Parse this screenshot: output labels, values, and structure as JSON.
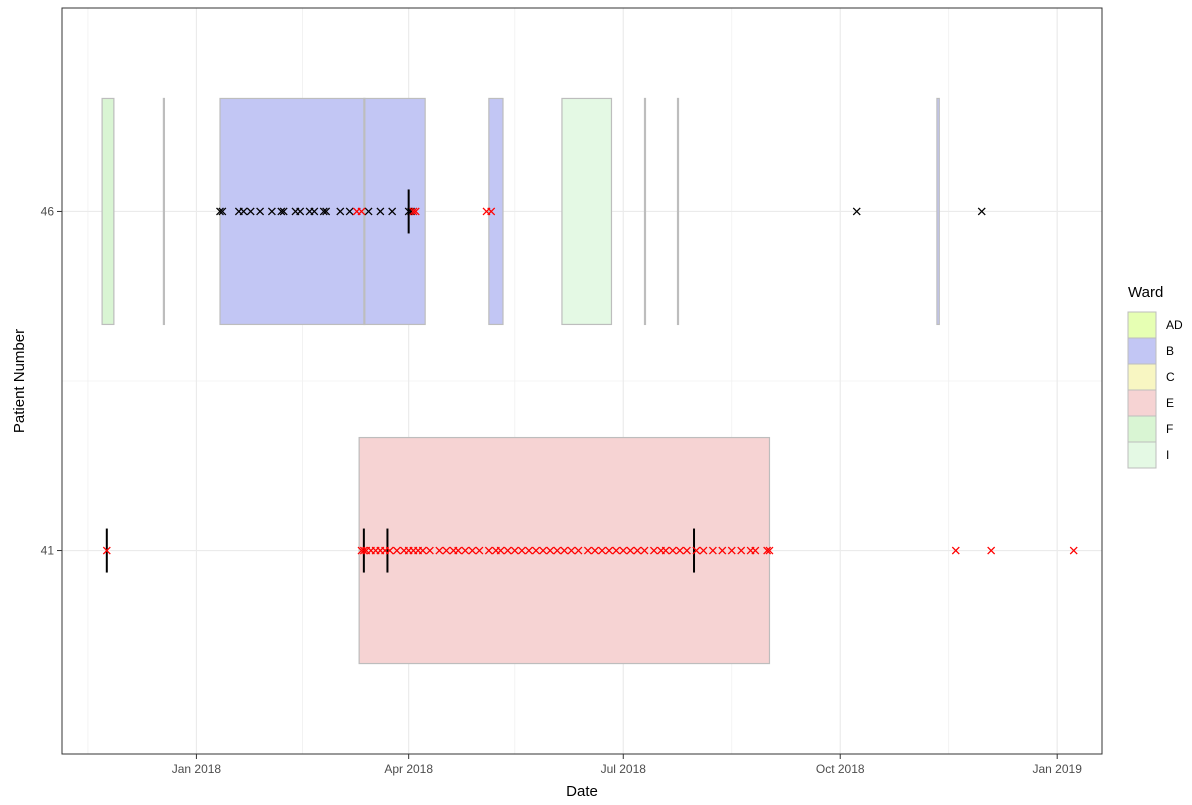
{
  "chart_data": {
    "type": "scatter",
    "xlabel": "Date",
    "ylabel": "Patient Number",
    "xlim": [
      "2017-11-05",
      "2019-01-20"
    ],
    "x_ticks": [
      {
        "date": "2018-01-01",
        "label": "Jan 2018"
      },
      {
        "date": "2018-04-01",
        "label": "Apr 2018"
      },
      {
        "date": "2018-07-01",
        "label": "Jul 2018"
      },
      {
        "date": "2018-10-01",
        "label": "Oct 2018"
      },
      {
        "date": "2019-01-01",
        "label": "Jan 2019"
      }
    ],
    "x_minor_ticks": [
      "2017-11-16",
      "2018-02-15",
      "2018-05-16",
      "2018-08-16",
      "2018-11-16"
    ],
    "categories": [
      "41",
      "46"
    ],
    "grid": true,
    "legend": {
      "title": "Ward",
      "placement": "right",
      "entries": [
        {
          "label": "AD",
          "fill": "#e6ffb3"
        },
        {
          "label": "B",
          "fill": "#c2c6f4"
        },
        {
          "label": "C",
          "fill": "#f8f6c2"
        },
        {
          "label": "E",
          "fill": "#f6d3d3"
        },
        {
          "label": "F",
          "fill": "#d9f5d3"
        },
        {
          "label": "I",
          "fill": "#e4f9e4"
        }
      ]
    },
    "ward_stays": [
      {
        "patient": "46",
        "ward": "F",
        "start": "2017-11-22",
        "end": "2017-11-27"
      },
      {
        "patient": "46",
        "ward": "F",
        "start": "2017-12-18",
        "end": "2017-12-18"
      },
      {
        "patient": "46",
        "ward": "B",
        "start": "2018-01-11",
        "end": "2018-04-08"
      },
      {
        "patient": "46",
        "ward": "B",
        "start": "2018-03-13",
        "end": "2018-03-13"
      },
      {
        "patient": "46",
        "ward": "B",
        "start": "2018-05-05",
        "end": "2018-05-11"
      },
      {
        "patient": "46",
        "ward": "I",
        "start": "2018-06-05",
        "end": "2018-06-26"
      },
      {
        "patient": "46",
        "ward": "F",
        "start": "2018-07-10",
        "end": "2018-07-10"
      },
      {
        "patient": "46",
        "ward": "F",
        "start": "2018-07-24",
        "end": "2018-07-24"
      },
      {
        "patient": "46",
        "ward": "B",
        "start": "2018-11-11",
        "end": "2018-11-12"
      },
      {
        "patient": "41",
        "ward": "E",
        "start": "2018-03-11",
        "end": "2018-09-01"
      }
    ],
    "series": [
      {
        "marker_color": "#000000",
        "patient": "46",
        "dates": [
          "2018-01-11",
          "2018-01-12",
          "2018-01-19",
          "2018-01-21",
          "2018-01-24",
          "2018-01-28",
          "2018-02-02",
          "2018-02-06",
          "2018-02-07",
          "2018-02-12",
          "2018-02-14",
          "2018-02-18",
          "2018-02-20",
          "2018-02-24",
          "2018-02-25",
          "2018-03-03",
          "2018-03-07",
          "2018-03-15",
          "2018-03-20",
          "2018-03-25",
          "2018-04-01",
          "2018-04-02",
          "2018-10-08",
          "2018-11-30"
        ]
      },
      {
        "marker_color": "#ff0000",
        "patient": "46",
        "dates": [
          "2018-03-10",
          "2018-03-12",
          "2018-04-03",
          "2018-04-04",
          "2018-05-04",
          "2018-05-06"
        ]
      },
      {
        "marker_color": "#ff0000",
        "patient": "41",
        "dates": [
          "2017-11-24",
          "2018-03-12",
          "2018-03-13",
          "2018-03-14",
          "2018-03-16",
          "2018-03-18",
          "2018-03-20",
          "2018-03-22",
          "2018-03-24",
          "2018-03-27",
          "2018-03-30",
          "2018-04-01",
          "2018-04-03",
          "2018-04-05",
          "2018-04-07",
          "2018-04-10",
          "2018-04-14",
          "2018-04-17",
          "2018-04-20",
          "2018-04-22",
          "2018-04-25",
          "2018-04-28",
          "2018-05-01",
          "2018-05-05",
          "2018-05-08",
          "2018-05-10",
          "2018-05-13",
          "2018-05-16",
          "2018-05-19",
          "2018-05-22",
          "2018-05-25",
          "2018-05-28",
          "2018-05-31",
          "2018-06-03",
          "2018-06-06",
          "2018-06-09",
          "2018-06-12",
          "2018-06-16",
          "2018-06-19",
          "2018-06-22",
          "2018-06-25",
          "2018-06-28",
          "2018-07-01",
          "2018-07-04",
          "2018-07-07",
          "2018-07-10",
          "2018-07-14",
          "2018-07-17",
          "2018-07-19",
          "2018-07-22",
          "2018-07-25",
          "2018-07-28",
          "2018-08-01",
          "2018-08-04",
          "2018-08-08",
          "2018-08-12",
          "2018-08-16",
          "2018-08-20",
          "2018-08-24",
          "2018-08-26",
          "2018-08-31",
          "2018-09-01",
          "2018-11-19",
          "2018-12-04",
          "2019-01-08"
        ]
      }
    ],
    "event_lines": [
      {
        "patient": "46",
        "date": "2018-04-01"
      },
      {
        "patient": "41",
        "date": "2017-11-24"
      },
      {
        "patient": "41",
        "date": "2018-03-13"
      },
      {
        "patient": "41",
        "date": "2018-03-23"
      },
      {
        "patient": "41",
        "date": "2018-07-31"
      }
    ]
  }
}
